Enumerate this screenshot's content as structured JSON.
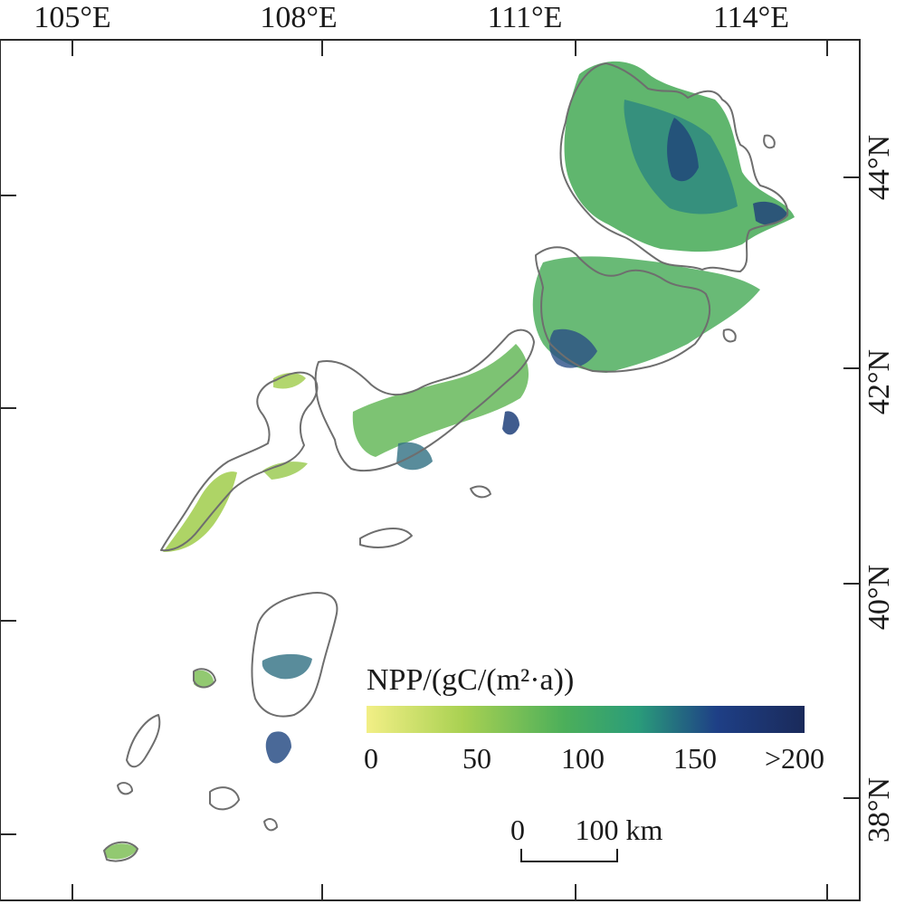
{
  "map": {
    "lon_labels": [
      "105°E",
      "108°E",
      "111°E",
      "114°E"
    ],
    "lat_labels": [
      "44°N",
      "42°N",
      "40°N",
      "38°N"
    ]
  },
  "legend": {
    "title": "NPP/(gC/(m²·a))",
    "ticks": [
      "0",
      "50",
      "100",
      "150",
      ">200"
    ],
    "colors": [
      "#f2ef86",
      "#8cc84b",
      "#2e9c74",
      "#1e2d78",
      "#1a2a5a"
    ]
  },
  "scale_bar": {
    "start_label": "0",
    "end_label": "100 km"
  },
  "colors": {
    "frame": "#2a2a2a",
    "boundary": "#6e6e6e",
    "npp_low": "#b5d45a",
    "npp_mid": "#4fae5e",
    "npp_high": "#2f8a80",
    "npp_max": "#1f3f7a"
  }
}
